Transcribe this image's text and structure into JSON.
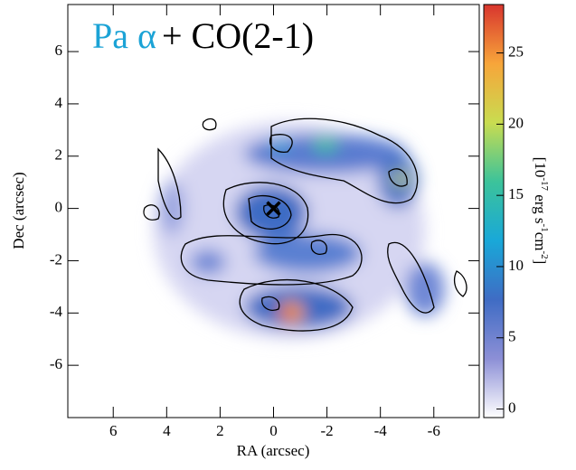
{
  "chart_data": {
    "type": "image",
    "title_parts": [
      {
        "text": "Pa α",
        "color": "#1ba3d6"
      },
      {
        "text": "+ CO(2-1)",
        "color": "#000000"
      }
    ],
    "xlabel": "RA (arcsec)",
    "ylabel": "Dec (arcsec)",
    "xlim": [
      7.7,
      -7.7
    ],
    "ylim": [
      -8,
      7.8
    ],
    "xticks": [
      6,
      4,
      2,
      0,
      -2,
      -4,
      -6
    ],
    "yticks": [
      6,
      4,
      2,
      0,
      -2,
      -4,
      -6
    ],
    "marker": {
      "x": 0,
      "y": 0
    },
    "colorbar": {
      "lim": [
        -0.6,
        28.4
      ],
      "ticks": [
        0,
        5,
        10,
        15,
        20,
        25
      ],
      "colormap": [
        "#ffffff",
        "#8c8fd6",
        "#3f6cc4",
        "#19a8d8",
        "#3cc39a",
        "#c9dc50",
        "#f7a53a",
        "#d8352e"
      ],
      "label_parts": [
        {
          "text": "[10",
          "sup": false
        },
        {
          "text": "-17",
          "sup": true
        },
        {
          "text": " erg s",
          "sup": false
        },
        {
          "text": "-1",
          "sup": true
        },
        {
          "text": "cm",
          "sup": false
        },
        {
          "text": "-2",
          "sup": true
        },
        {
          "text": "]",
          "sup": false
        }
      ]
    }
  }
}
